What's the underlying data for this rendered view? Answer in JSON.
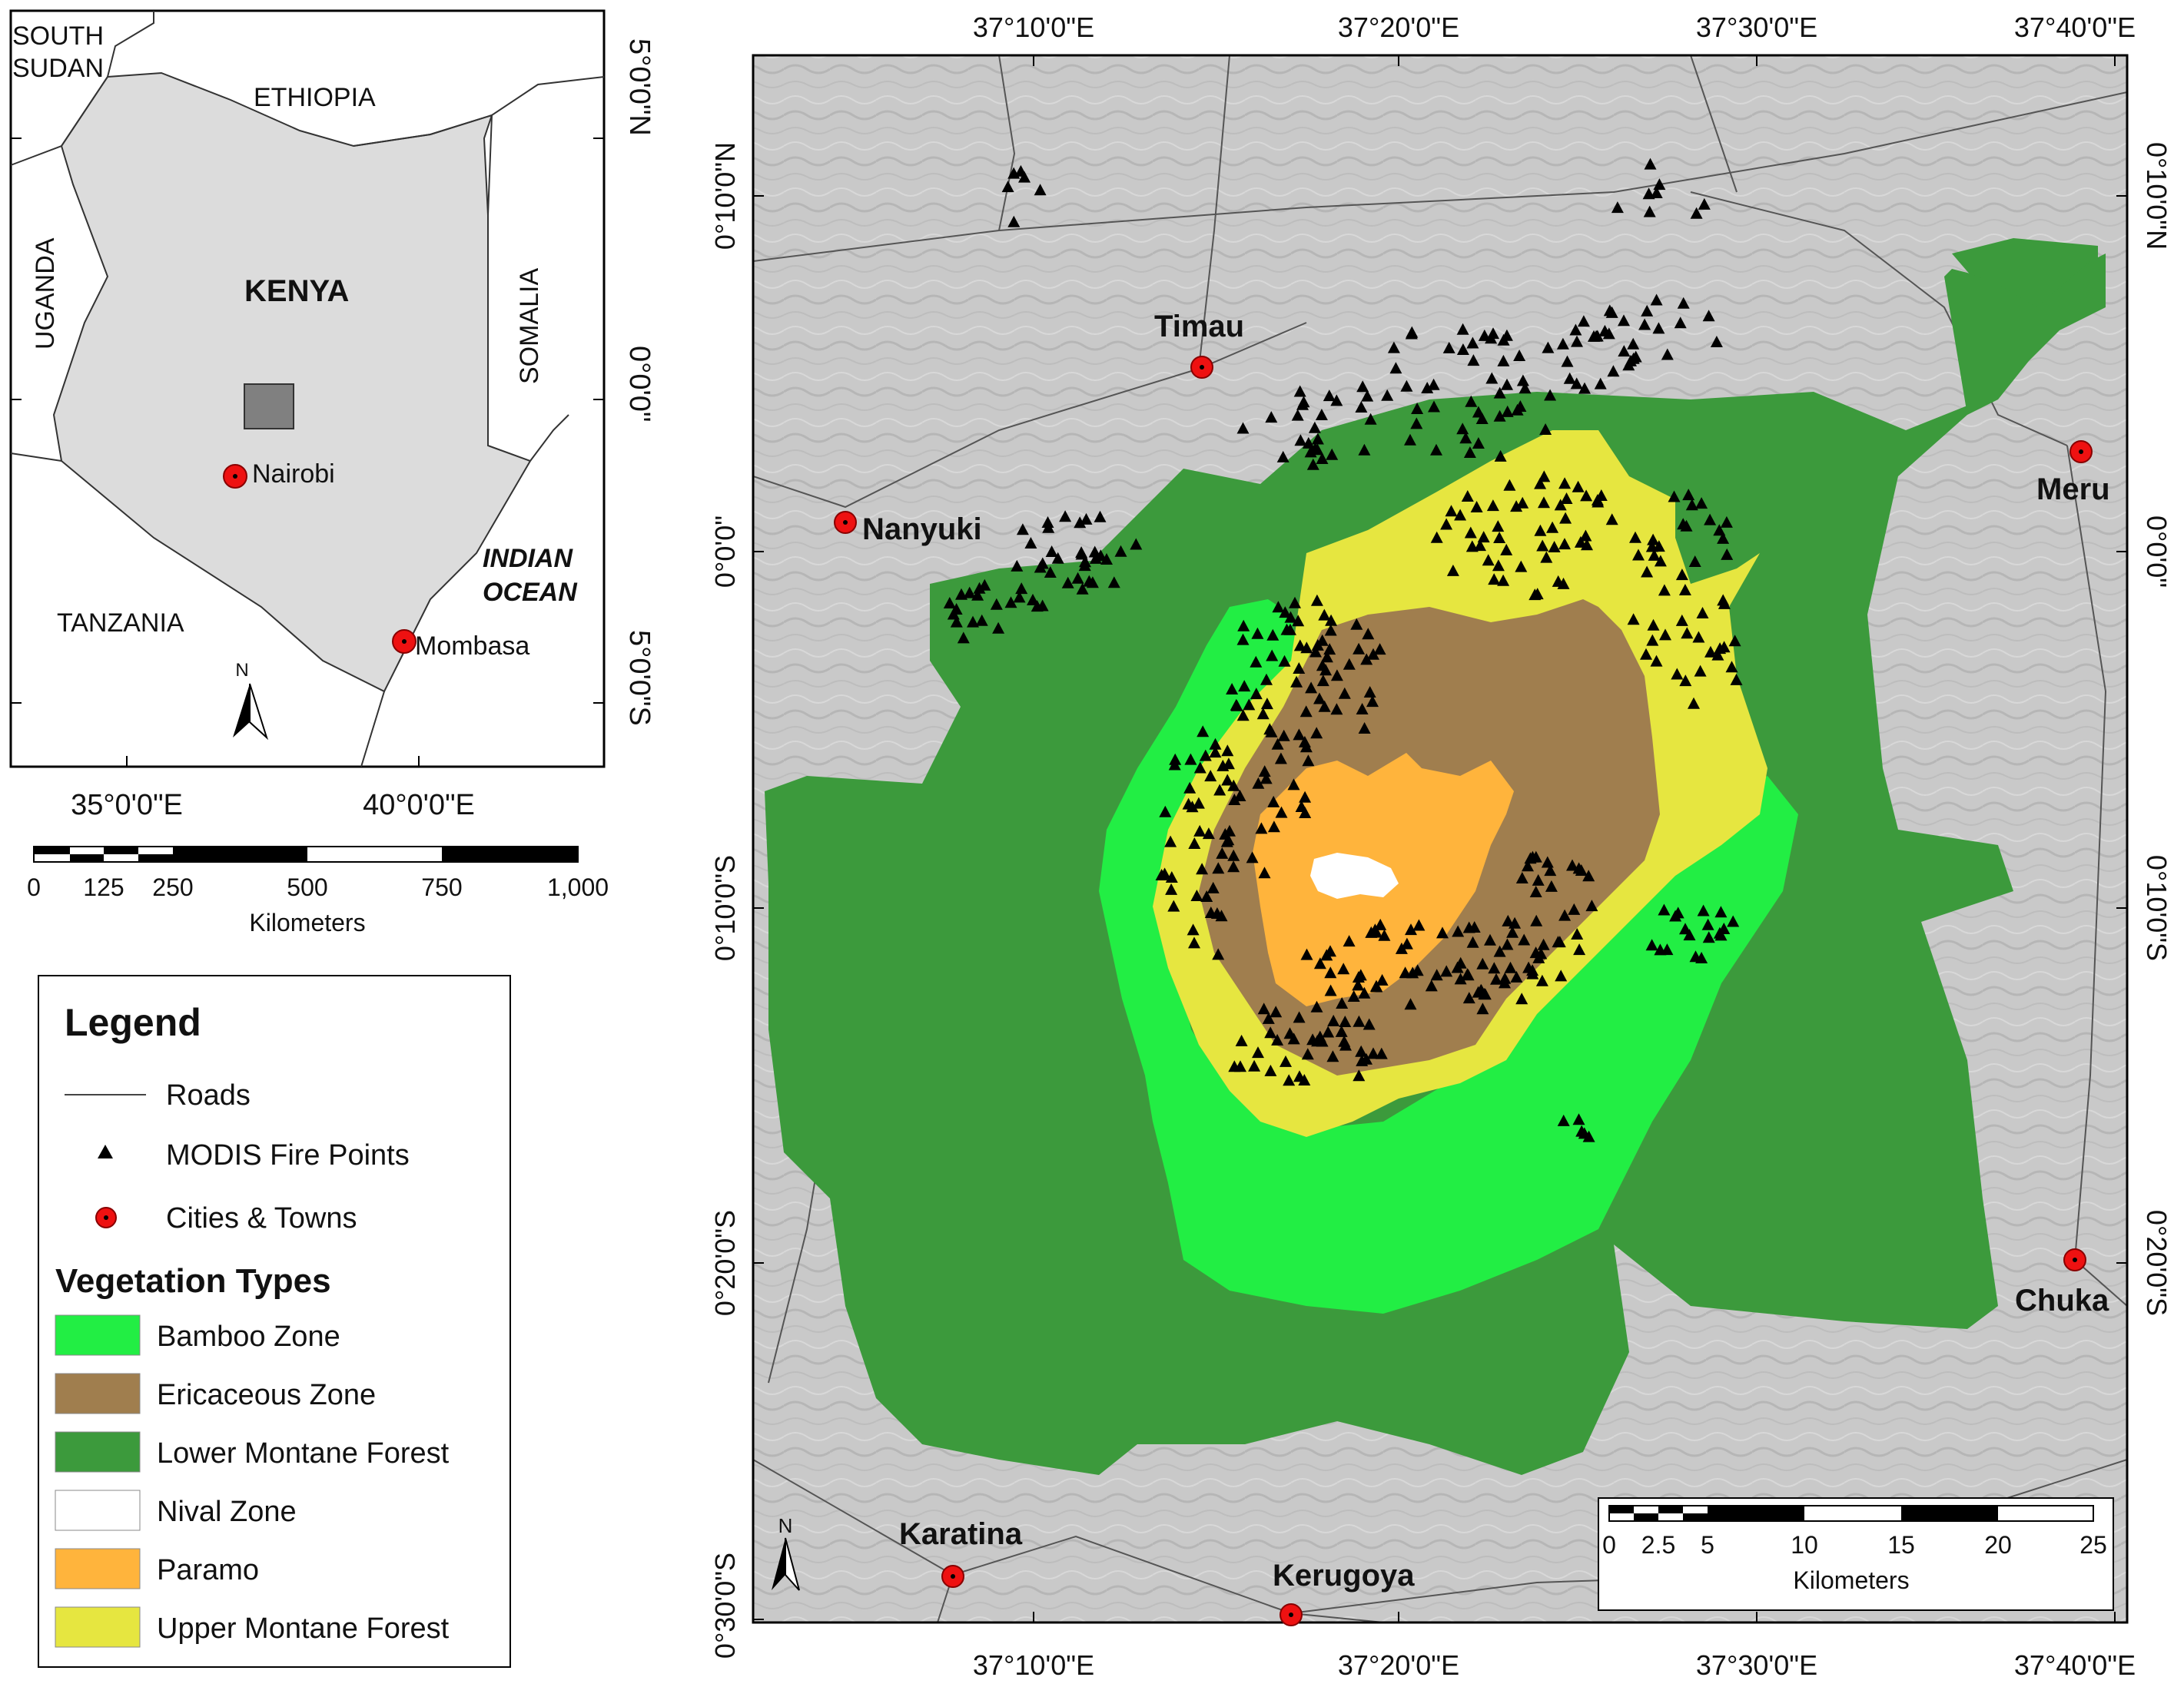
{
  "inset": {
    "labels": {
      "south_sudan_1": "SOUTH",
      "south_sudan_2": "SUDAN",
      "ethiopia": "ETHIOPIA",
      "uganda": "UGANDA",
      "kenya": "KENYA",
      "somalia": "SOMALIA",
      "tanzania": "TANZANIA",
      "indian_ocean_1": "INDIAN",
      "indian_ocean_2": "OCEAN",
      "nairobi": "Nairobi",
      "mombasa": "Mombasa",
      "north": "N"
    },
    "lat_ticks": [
      "5°0'0\"N",
      "0°0'0\"",
      "5°0'0\"S"
    ],
    "lon_ticks": [
      "35°0'0\"E",
      "40°0'0\"E"
    ],
    "scale": {
      "ticks": [
        "0",
        "125",
        "250",
        "500",
        "750",
        "1,000"
      ],
      "unit": "Kilometers"
    }
  },
  "legend": {
    "title": "Legend",
    "roads": "Roads",
    "fire": "MODIS Fire Points",
    "cities": "Cities & Towns",
    "veg_title": "Vegetation Types",
    "veg": [
      {
        "label": "Bamboo Zone",
        "color": "#22ee44"
      },
      {
        "label": "Ericaceous Zone",
        "color": "#a07e4e"
      },
      {
        "label": "Lower Montane Forest",
        "color": "#3c9a3c"
      },
      {
        "label": "Nival Zone",
        "color": "#ffffff"
      },
      {
        "label": "Paramo",
        "color": "#ffb43c"
      },
      {
        "label": "Upper Montane Forest",
        "color": "#e6e640"
      }
    ]
  },
  "main_map": {
    "top_ticks": [
      "37°10'0\"E",
      "37°20'0\"E",
      "37°30'0\"E",
      "37°40'0\"E"
    ],
    "bottom_ticks": [
      "37°10'0\"E",
      "37°20'0\"E",
      "37°30'0\"E",
      "37°40'0\"E"
    ],
    "left_ticks": [
      "0°10'0\"N",
      "0°0'0\"",
      "0°10'0\"S",
      "0°20'0\"S",
      "0°30'0\"S"
    ],
    "right_ticks": [
      "0°10'0\"N",
      "0°0'0\"",
      "0°10'0\"S",
      "0°20'0\"S"
    ],
    "cities": {
      "timau": "Timau",
      "nanyuki": "Nanyuki",
      "meru": "Meru",
      "chuka": "Chuka",
      "karatina": "Karatina",
      "kerugoya": "Kerugoya"
    },
    "north": "N",
    "scale": {
      "ticks": [
        "0",
        "2.5",
        "5",
        "10",
        "15",
        "20",
        "25"
      ],
      "unit": "Kilometers"
    }
  }
}
